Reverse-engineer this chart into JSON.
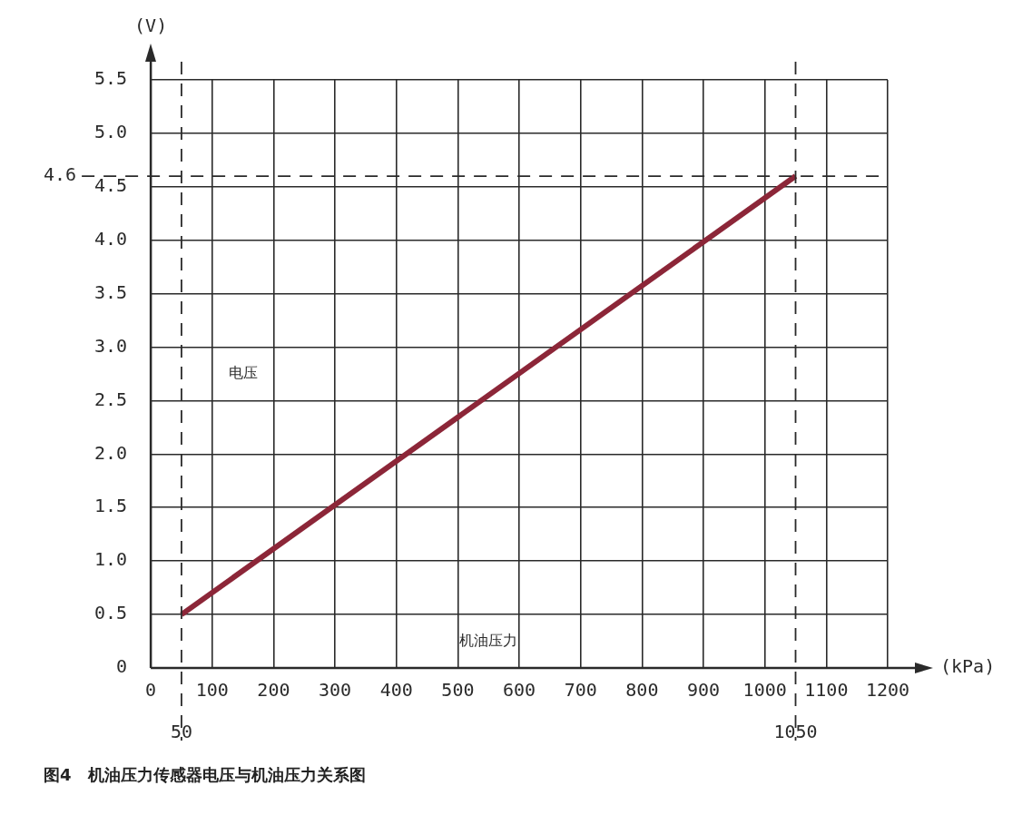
{
  "chart_data": {
    "type": "line",
    "xlabel": "机油压力",
    "ylabel": "电压",
    "annotations": [
      "(V)",
      "(kPa)",
      "图4　机油压力传感器电压与机油压力关系图"
    ],
    "series": [
      {
        "color": "#8c2638",
        "x": [
          50,
          1050
        ],
        "values": [
          0.5,
          4.6
        ]
      }
    ],
    "xlim": [
      0,
      1200
    ],
    "xticks": [
      0,
      100,
      200,
      300,
      400,
      500,
      600,
      700,
      800,
      900,
      1000,
      1100,
      1200
    ],
    "ylim": [
      0,
      5.5
    ],
    "yticks": [
      0,
      0.5,
      {
        "value": 1,
        "label": "1.0"
      },
      1.5,
      {
        "value": 2,
        "label": "2.0"
      },
      2.5,
      {
        "value": 3,
        "label": "3.0"
      },
      3.5,
      {
        "value": 4,
        "label": "4.0"
      },
      4.5,
      {
        "value": 5,
        "label": "5.0"
      },
      5.5
    ],
    "grid": true,
    "marker": "none",
    "line_style": "solid",
    "legend": false,
    "ref_lines": [
      {
        "axis": "x",
        "value": 50,
        "label": "50",
        "line_style": "dashed"
      },
      {
        "axis": "x",
        "value": 1050,
        "label": "1050",
        "line_style": "dashed"
      },
      {
        "axis": "y",
        "value": 4.6,
        "label": "4.6",
        "line_style": "dashed"
      }
    ]
  }
}
